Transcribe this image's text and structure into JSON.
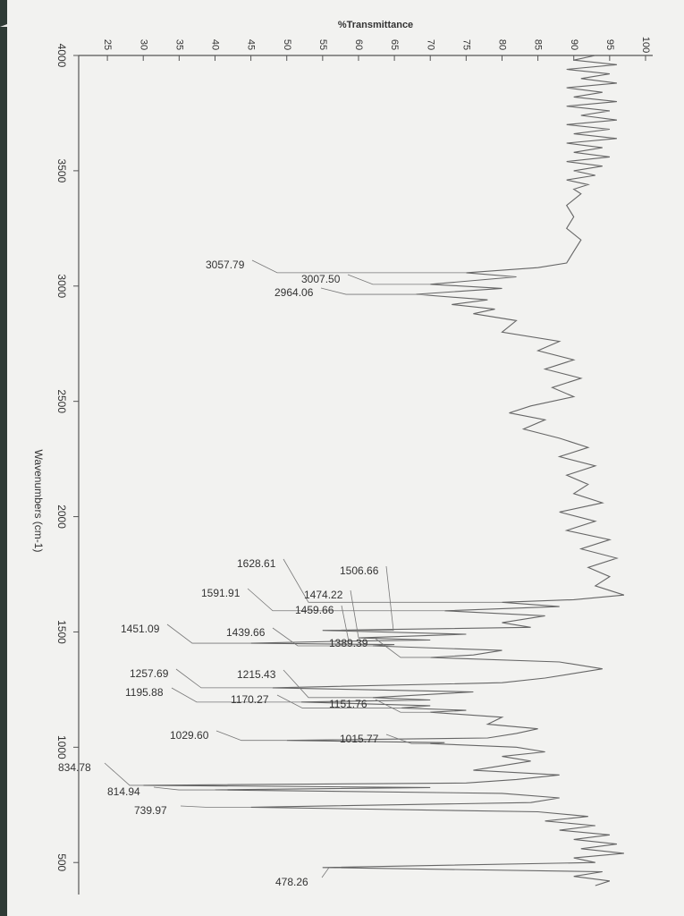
{
  "chart_data": {
    "type": "line",
    "title": "%Transmittance",
    "x_label": "Wavenumbers (cm-1)",
    "xlim": [
      4000,
      400
    ],
    "ylim": [
      21,
      101
    ],
    "xticks": [
      4000,
      3500,
      3000,
      2500,
      2000,
      1500,
      1000,
      500
    ],
    "yticks": [
      25,
      30,
      35,
      40,
      45,
      50,
      55,
      60,
      65,
      70,
      75,
      80,
      85,
      90,
      95,
      100
    ],
    "x": [
      4000,
      3980,
      3960,
      3940,
      3920,
      3900,
      3880,
      3860,
      3840,
      3820,
      3800,
      3780,
      3760,
      3740,
      3720,
      3700,
      3680,
      3660,
      3640,
      3620,
      3600,
      3580,
      3560,
      3540,
      3520,
      3500,
      3480,
      3460,
      3440,
      3420,
      3400,
      3350,
      3300,
      3250,
      3200,
      3150,
      3100,
      3080,
      3057.79,
      3040,
      3007.5,
      2990,
      2964.06,
      2940,
      2920,
      2900,
      2880,
      2850,
      2800,
      2760,
      2720,
      2680,
      2640,
      2600,
      2560,
      2520,
      2480,
      2450,
      2420,
      2380,
      2340,
      2300,
      2260,
      2220,
      2180,
      2140,
      2100,
      2060,
      2020,
      1980,
      1940,
      1900,
      1860,
      1820,
      1780,
      1740,
      1700,
      1660,
      1640,
      1628.61,
      1610,
      1591.91,
      1570,
      1540,
      1520,
      1506.66,
      1490,
      1474.22,
      1465,
      1459.66,
      1451.09,
      1445,
      1439.66,
      1420,
      1400,
      1389.39,
      1370,
      1340,
      1300,
      1280,
      1257.69,
      1240,
      1215.43,
      1205,
      1195.88,
      1180,
      1170.27,
      1160,
      1151.76,
      1130,
      1100,
      1080,
      1060,
      1040,
      1029.6,
      1020,
      1015.77,
      1000,
      980,
      960,
      940,
      900,
      880,
      860,
      845,
      834.78,
      825,
      814.94,
      800,
      780,
      760,
      739.97,
      720,
      700,
      680,
      660,
      640,
      620,
      600,
      580,
      560,
      540,
      520,
      500,
      478.26,
      460,
      440,
      420,
      400
    ],
    "series": [
      {
        "color": "#666666",
        "values": [
          93,
          90,
          96,
          89,
          95,
          91,
          96,
          89,
          94,
          90,
          96,
          89,
          95,
          91,
          96,
          89,
          95,
          90,
          96,
          89,
          94,
          90,
          95,
          89,
          94,
          90,
          93,
          89,
          92,
          90,
          91,
          89,
          90,
          89,
          91,
          90,
          89,
          85,
          75,
          82,
          70,
          80,
          68,
          78,
          73,
          79,
          76,
          82,
          80,
          88,
          85,
          90,
          86,
          91,
          87,
          90,
          84,
          81,
          86,
          83,
          88,
          92,
          88,
          93,
          89,
          92,
          90,
          94,
          88,
          93,
          89,
          95,
          91,
          96,
          92,
          95,
          93,
          97,
          90,
          80,
          88,
          72,
          86,
          80,
          84,
          55,
          75,
          60,
          70,
          58,
          45,
          65,
          62,
          80,
          76,
          70,
          88,
          94,
          86,
          80,
          48,
          76,
          62,
          70,
          52,
          70,
          66,
          75,
          70,
          80,
          78,
          85,
          82,
          78,
          50,
          72,
          70,
          82,
          86,
          80,
          84,
          76,
          88,
          82,
          75,
          30,
          70,
          40,
          80,
          88,
          84,
          45,
          85,
          92,
          86,
          93,
          88,
          95,
          90,
          96,
          91,
          97,
          90,
          93,
          55,
          94,
          90,
          95,
          93
        ]
      }
    ],
    "peaks": [
      {
        "value": 3057.79,
        "label": "3057.79"
      },
      {
        "value": 3007.5,
        "label": "3007.50"
      },
      {
        "value": 2964.06,
        "label": "2964.06"
      },
      {
        "value": 1628.61,
        "label": "1628.61"
      },
      {
        "value": 1591.91,
        "label": "1591.91"
      },
      {
        "value": 1506.66,
        "label": "1506.66"
      },
      {
        "value": 1474.22,
        "label": "1474.22"
      },
      {
        "value": 1459.66,
        "label": "1459.66"
      },
      {
        "value": 1451.09,
        "label": "1451.09"
      },
      {
        "value": 1439.66,
        "label": "1439.66"
      },
      {
        "value": 1389.39,
        "label": "1389.39"
      },
      {
        "value": 1257.69,
        "label": "1257.69"
      },
      {
        "value": 1215.43,
        "label": "1215.43"
      },
      {
        "value": 1195.88,
        "label": "1195.88"
      },
      {
        "value": 1170.27,
        "label": "1170.27"
      },
      {
        "value": 1151.76,
        "label": "1151.76"
      },
      {
        "value": 1029.6,
        "label": "1029.60"
      },
      {
        "value": 1015.77,
        "label": "1015.77"
      },
      {
        "value": 834.78,
        "label": "834.78"
      },
      {
        "value": 814.94,
        "label": "814.94"
      },
      {
        "value": 739.97,
        "label": "739.97"
      },
      {
        "value": 478.26,
        "label": "478.26"
      }
    ]
  }
}
